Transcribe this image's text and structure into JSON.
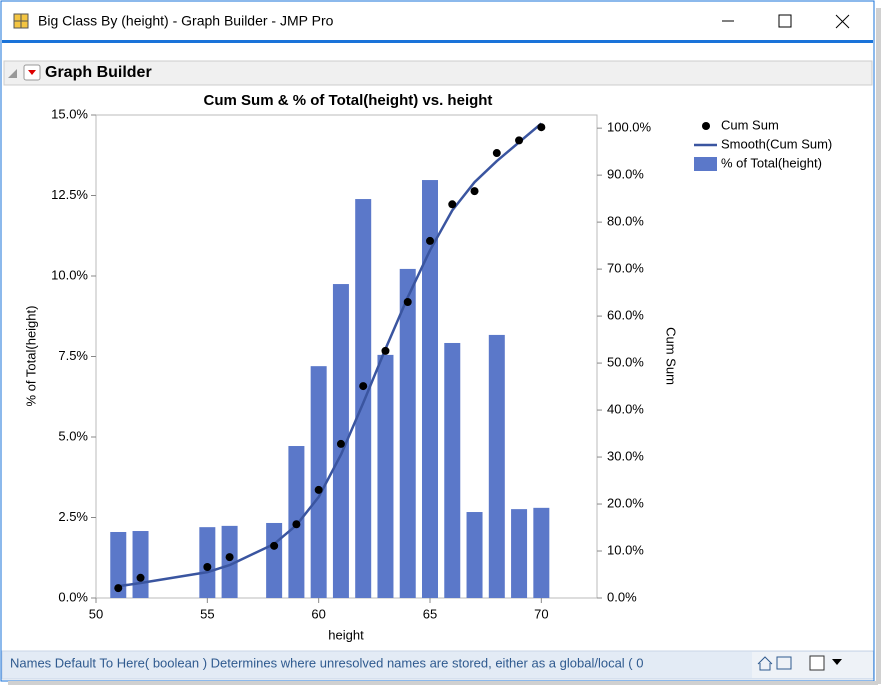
{
  "window": {
    "title": "Big Class By (height) - Graph Builder - JMP Pro"
  },
  "panel": {
    "title": "Graph Builder"
  },
  "status": {
    "text": "Names Default To Here( boolean )  Determines where unresolved names are stored, either as a global/local ( 0"
  },
  "chart_data": {
    "type": "combo",
    "title": "Cum Sum & % of Total(height) vs. height",
    "x_label": "height",
    "y_label": "% of Total(height)",
    "y2_label": "Cum Sum",
    "x": [
      51,
      52,
      55,
      56,
      58,
      59,
      60,
      61,
      62,
      63,
      64,
      65,
      66,
      67,
      68,
      69,
      70
    ],
    "series": [
      {
        "name": "Cum Sum",
        "type": "scatter",
        "axis": "y2",
        "color": "#000000",
        "values": [
          2.1,
          4.3,
          6.6,
          8.7,
          11.1,
          15.7,
          23.0,
          32.8,
          45.1,
          52.6,
          63.0,
          76.0,
          83.8,
          86.6,
          94.7,
          97.4,
          100.2
        ]
      },
      {
        "name": "Smooth(Cum Sum)",
        "type": "line",
        "axis": "y2",
        "color": "#3a55a0",
        "values": [
          2.5,
          3.2,
          5.5,
          7.0,
          11.5,
          15.5,
          21.5,
          30.5,
          41.5,
          53.0,
          64.0,
          74.0,
          82.5,
          88.5,
          93.0,
          97.0,
          101.0
        ]
      },
      {
        "name": "% of Total(height)",
        "type": "bar",
        "axis": "y",
        "color": "#5b78c9",
        "values": [
          2.05,
          2.08,
          2.2,
          2.24,
          2.33,
          4.72,
          7.2,
          9.75,
          12.39,
          7.55,
          10.22,
          12.98,
          7.92,
          2.67,
          8.17,
          2.76,
          2.8
        ]
      }
    ],
    "xlim": [
      50,
      72.5
    ],
    "xticks": [
      50,
      55,
      60,
      65,
      70
    ],
    "ylim": [
      0,
      15
    ],
    "yticks": [
      {
        "value": 0,
        "label": "0.0%"
      },
      {
        "value": 2.5,
        "label": "2.5%"
      },
      {
        "value": 5,
        "label": "5.0%"
      },
      {
        "value": 7.5,
        "label": "7.5%"
      },
      {
        "value": 10,
        "label": "10.0%"
      },
      {
        "value": 12.5,
        "label": "12.5%"
      },
      {
        "value": 15,
        "label": "15.0%"
      }
    ],
    "y2lim": [
      0,
      102.8
    ],
    "y2ticks": [
      {
        "value": 0,
        "label": "0.0%"
      },
      {
        "value": 10,
        "label": "10.0%"
      },
      {
        "value": 20,
        "label": "20.0%"
      },
      {
        "value": 30,
        "label": "30.0%"
      },
      {
        "value": 40,
        "label": "40.0%"
      },
      {
        "value": 50,
        "label": "50.0%"
      },
      {
        "value": 60,
        "label": "60.0%"
      },
      {
        "value": 70,
        "label": "70.0%"
      },
      {
        "value": 80,
        "label": "80.0%"
      },
      {
        "value": 90,
        "label": "90.0%"
      },
      {
        "value": 100,
        "label": "100.0%"
      }
    ],
    "legend": "right"
  }
}
